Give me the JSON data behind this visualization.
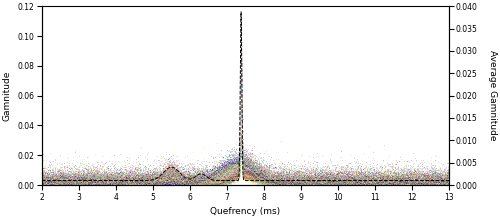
{
  "xlim": [
    2,
    13
  ],
  "ylim_left": [
    0,
    0.12
  ],
  "ylim_right": [
    0,
    0.04
  ],
  "xlabel": "Quefrency (ms)",
  "ylabel_left": "Gamnitude",
  "ylabel_right": "Average Gamnitude",
  "peak_quefrency": 7.38,
  "xticks": [
    2,
    3,
    4,
    5,
    6,
    7,
    8,
    9,
    10,
    11,
    12,
    13
  ],
  "yticks_left": [
    0,
    0.02,
    0.04,
    0.06,
    0.08,
    0.1,
    0.12
  ],
  "yticks_right": [
    0,
    0.005,
    0.01,
    0.015,
    0.02,
    0.025,
    0.03,
    0.035,
    0.04
  ],
  "n_clicks": 60,
  "n_points_per_click": 2200,
  "noise_base": 0.0025,
  "colors": [
    "#e6194b",
    "#3cb44b",
    "#ffe119",
    "#4363d8",
    "#f58231",
    "#911eb4",
    "#42d4f4",
    "#f032e6",
    "#bfef45",
    "#fabebe",
    "#469990",
    "#e6beff",
    "#9A6324",
    "#fffac8",
    "#800000",
    "#aaffc3",
    "#808000",
    "#ffd8b1",
    "#000075",
    "#a9a9a9",
    "#ff4500",
    "#00ced1",
    "#ff1493",
    "#7cfc00",
    "#dc143c",
    "#00fa9a",
    "#ff8c00",
    "#8a2be2",
    "#00bfff",
    "#adff2f",
    "#ff6347",
    "#40e0d0",
    "#ee82ee",
    "#f4a460",
    "#87ceeb",
    "#6495ed",
    "#dda0dd",
    "#90ee90",
    "#ffb6c1",
    "#20b2aa"
  ],
  "avg_line_color": "black",
  "avg_line_style": "--",
  "background_color": "white",
  "figsize": [
    5.0,
    2.19
  ],
  "dpi": 100
}
